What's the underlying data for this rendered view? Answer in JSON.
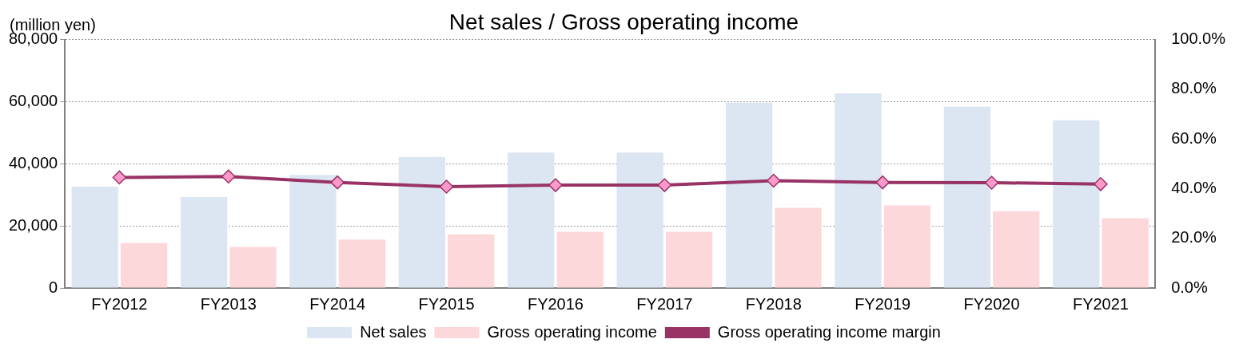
{
  "chart_data": {
    "type": "bar",
    "title": "Net sales / Gross operating income",
    "ylabel": "(million yen)",
    "categories": [
      "FY2012",
      "FY2013",
      "FY2014",
      "FY2015",
      "FY2016",
      "FY2017",
      "FY2018",
      "FY2019",
      "FY2020",
      "FY2021"
    ],
    "series": [
      {
        "name": "Net sales",
        "color": "#dce6f2",
        "values": [
          32600,
          29300,
          36400,
          42200,
          43600,
          43600,
          59700,
          62700,
          58400,
          54000
        ]
      },
      {
        "name": "Gross operating income",
        "color": "#fdd8da",
        "values": [
          14500,
          13200,
          15600,
          17300,
          18100,
          18100,
          25800,
          26600,
          24700,
          22500
        ]
      },
      {
        "name": "Gross operating income margin",
        "type": "line",
        "axis": "y2",
        "color": "#993366",
        "marker": "diamond",
        "values": [
          44.5,
          44.9,
          42.5,
          40.8,
          41.4,
          41.4,
          43.2,
          42.5,
          42.4,
          41.8
        ]
      }
    ],
    "ylim": [
      0,
      80000
    ],
    "yticks": [
      {
        "value": 0,
        "label": "0"
      },
      {
        "value": 20000,
        "label": "20,000"
      },
      {
        "value": 40000,
        "label": "40,000"
      },
      {
        "value": 60000,
        "label": "60,000"
      },
      {
        "value": 80000,
        "label": "80,000"
      }
    ],
    "y2lim": [
      0,
      100
    ],
    "y2ticks": [
      {
        "value": 0,
        "label": "0.0%"
      },
      {
        "value": 20,
        "label": "20.0%"
      },
      {
        "value": 40,
        "label": "40.0%"
      },
      {
        "value": 60,
        "label": "60.0%"
      },
      {
        "value": 80,
        "label": "80.0%"
      },
      {
        "value": 100,
        "label": "100.0%"
      }
    ],
    "grid": "y",
    "legend": "bottom"
  }
}
